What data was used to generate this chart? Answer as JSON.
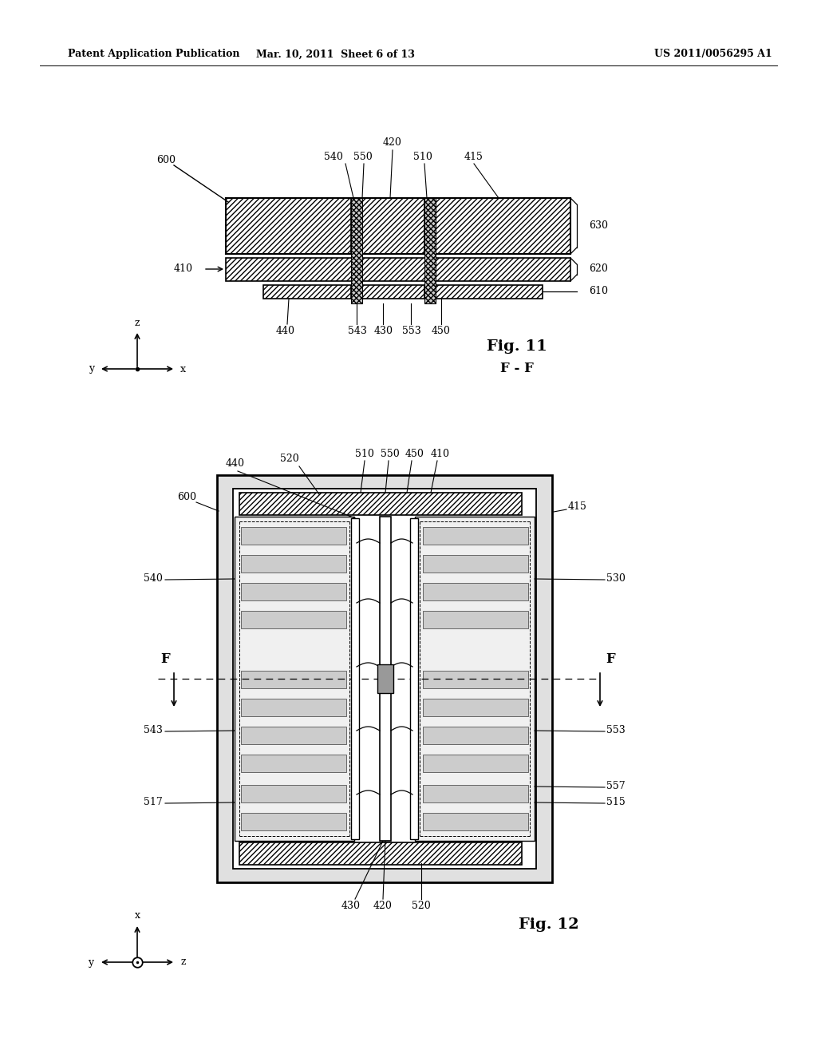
{
  "header_left": "Patent Application Publication",
  "header_mid": "Mar. 10, 2011  Sheet 6 of 13",
  "header_right": "US 2011/0056295 A1",
  "bg_color": "#ffffff",
  "fig11_title": "Fig. 11",
  "fig11_subtitle": "F - F",
  "fig12_title": "Fig. 12",
  "line_color": "#000000"
}
